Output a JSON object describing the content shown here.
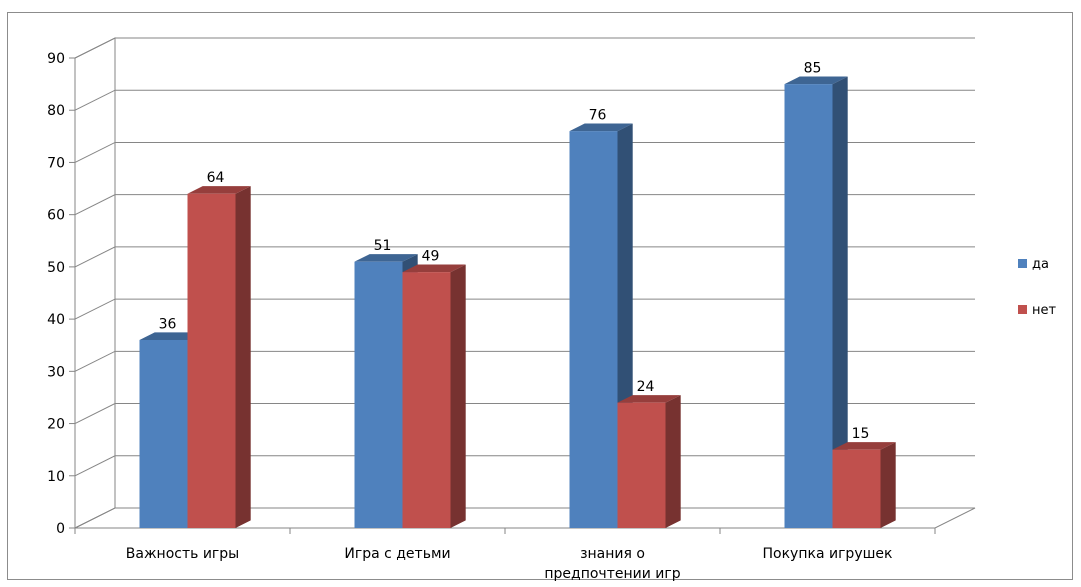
{
  "chart_data": {
    "type": "bar",
    "title": "",
    "xlabel": "",
    "ylabel": "",
    "ylim": [
      0,
      90
    ],
    "ytick_step": 10,
    "grid": true,
    "legend_position": "right",
    "three_d": true,
    "categories": [
      [
        "Важность игры"
      ],
      [
        "Игра с детьми"
      ],
      [
        "знания о",
        "предпочтении игр"
      ],
      [
        "Покупка игрушек"
      ]
    ],
    "series": [
      {
        "name": "да",
        "color": "#4F81BD",
        "values": [
          36,
          51,
          76,
          85
        ]
      },
      {
        "name": "нет",
        "color": "#C0504D",
        "values": [
          64,
          49,
          24,
          15
        ]
      }
    ]
  }
}
